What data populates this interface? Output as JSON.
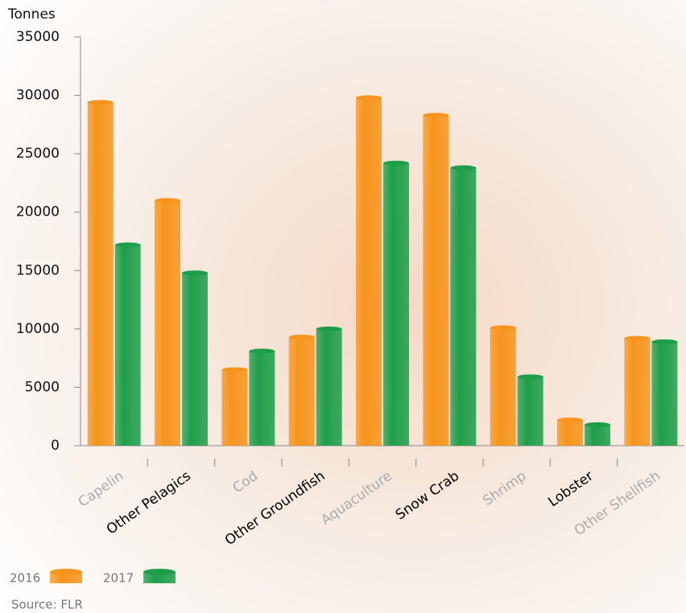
{
  "chart_data": {
    "type": "bar",
    "y_label": "Tonnes",
    "source": "Source: FLR",
    "categories": [
      "Capelin",
      "Other Pelagics",
      "Cod",
      "Other Groundfish",
      "Aquaculture",
      "Snow Crab",
      "Shrimp",
      "Lobster",
      "Other Shellfish"
    ],
    "series": [
      {
        "name": "2016",
        "color": "#f7941d",
        "values": [
          29400,
          21000,
          6500,
          9300,
          29800,
          28300,
          10100,
          2200,
          9200
        ]
      },
      {
        "name": "2017",
        "color": "#1f9e4a",
        "values": [
          17200,
          14800,
          8100,
          10000,
          24200,
          23800,
          5900,
          1800,
          8900
        ]
      }
    ],
    "ylim": [
      0,
      35000
    ],
    "yticks": [
      0,
      5000,
      10000,
      15000,
      20000,
      25000,
      30000,
      35000
    ]
  }
}
